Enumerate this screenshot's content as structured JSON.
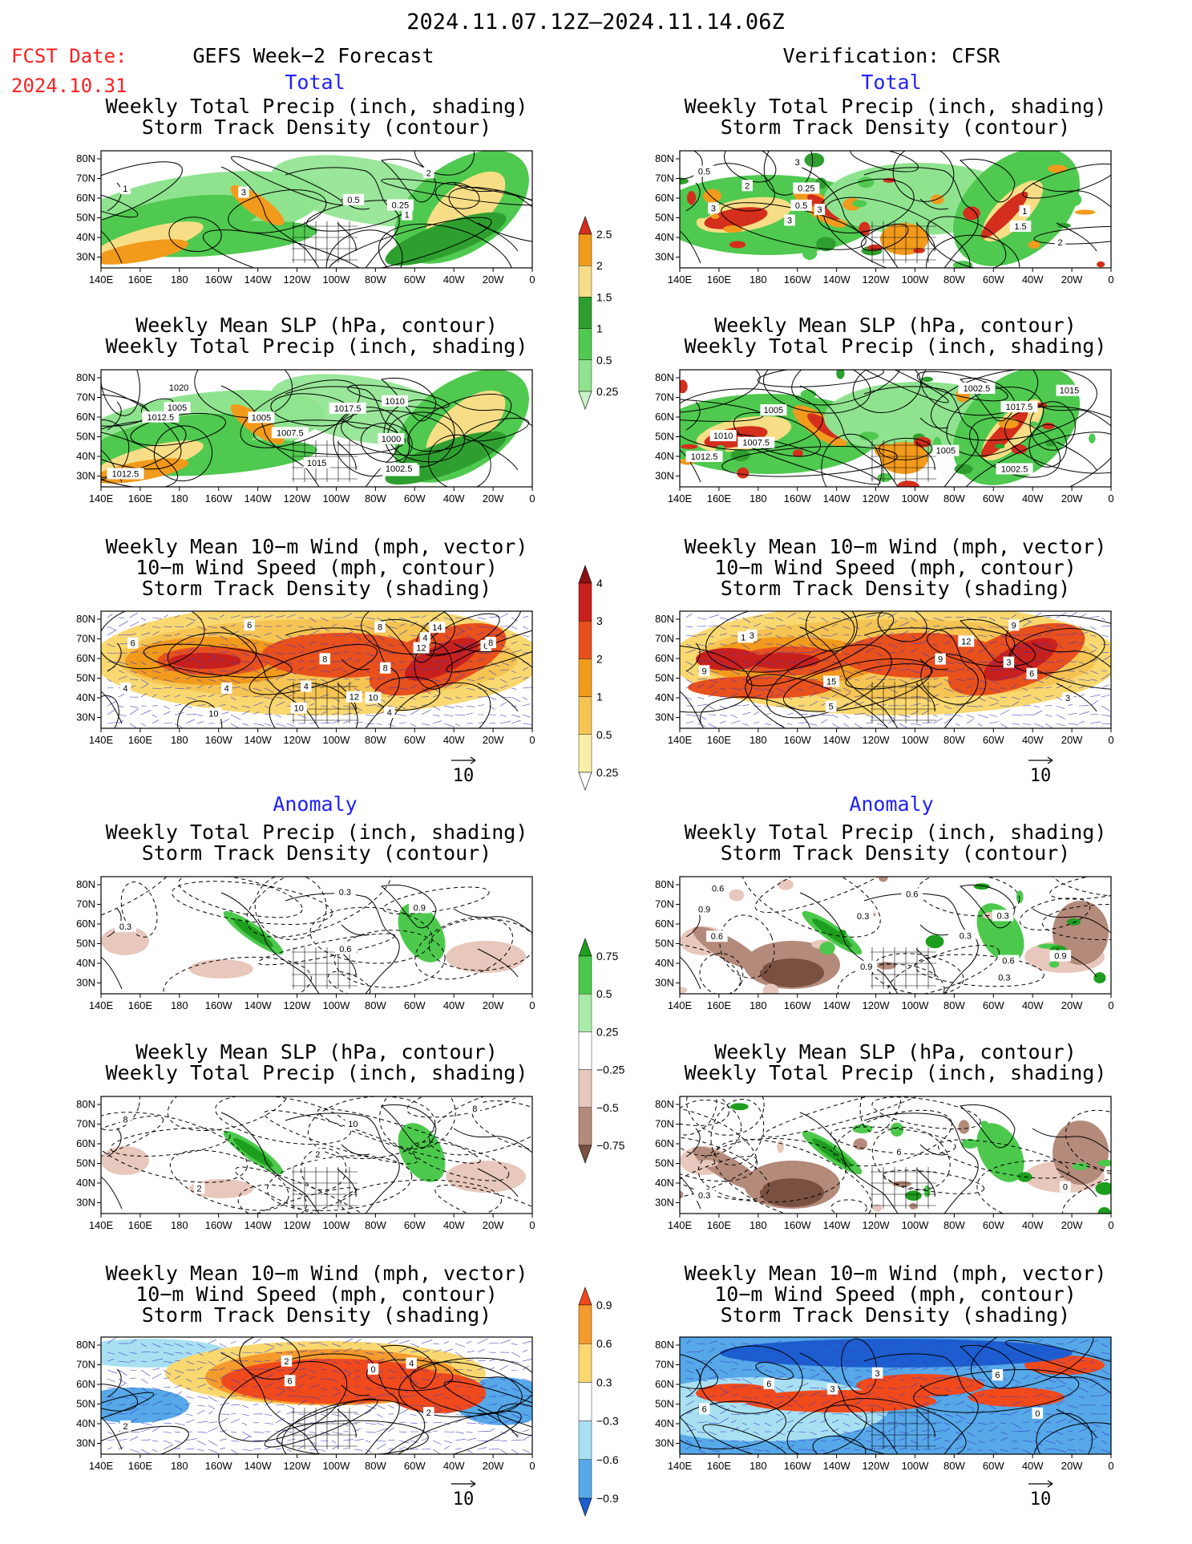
{
  "header": {
    "date_range": "2024.11.07.12Z–2024.11.14.06Z",
    "fcst_label": "FCST Date:",
    "fcst_date": "2024.10.31",
    "left_title": "GEFS Week−2 Forecast",
    "right_title": "Verification: CFSR",
    "total_label": "Total",
    "anomaly_label": "Anomaly"
  },
  "panels": {
    "precip_storm": [
      "Weekly Total Precip (inch, shading)",
      "Storm Track Density (contour)"
    ],
    "slp_precip": [
      "Weekly Mean SLP (hPa, contour)",
      "Weekly Total Precip (inch, shading)"
    ],
    "wind_storm": [
      "Weekly Mean 10−m Wind (mph, vector)",
      "10−m Wind Speed (mph, contour)",
      "Storm Track Density (shading)"
    ]
  },
  "axes": {
    "lon_ticks": [
      "140E",
      "160E",
      "180",
      "160W",
      "140W",
      "120W",
      "100W",
      "80W",
      "60W",
      "40W",
      "20W",
      "0"
    ],
    "lat_ticks": [
      "80N",
      "70N",
      "60N",
      "50N",
      "40N",
      "30N"
    ]
  },
  "vector_scale_label": "10",
  "colorbars": {
    "precip_total": {
      "labels": [
        "2.5",
        "2",
        "1.5",
        "1",
        "0.5",
        "0.25"
      ],
      "colors": [
        "#d32f1c",
        "#f29a1c",
        "#f7de86",
        "#2e9f2e",
        "#4fc94f",
        "#8fe38f",
        "#c8f2c8"
      ]
    },
    "storm_total": {
      "labels": [
        "4",
        "3",
        "2",
        "1",
        "0.5",
        "0.25"
      ],
      "colors": [
        "#8b1010",
        "#c8201c",
        "#e8501c",
        "#f29a1c",
        "#f5c453",
        "#fbeea8",
        "#ffffff"
      ]
    },
    "precip_anom": {
      "labels": [
        "0.75",
        "0.5",
        "0.25",
        "−0.25",
        "−0.5",
        "−0.75"
      ],
      "colors": [
        "#1e9e1e",
        "#4cc94c",
        "#a8eca8",
        "#ffffff",
        "#e8c8bc",
        "#b48a7a",
        "#7a5040"
      ]
    },
    "storm_anom": {
      "labels": [
        "0.9",
        "0.6",
        "0.3",
        "−0.3",
        "−0.6",
        "−0.9"
      ],
      "colors": [
        "#f04a1c",
        "#f59a2c",
        "#f9d870",
        "#ffffff",
        "#a8e0f2",
        "#56a8e8",
        "#1c5ed0"
      ]
    }
  },
  "contour_labels": {
    "fc_total_precip": [
      "1",
      "3",
      "2",
      "1",
      "0.5",
      "0.25"
    ],
    "ver_total_precip": [
      "0.5",
      "3",
      "0.5",
      "2",
      "3",
      "1",
      "3",
      "2",
      "3",
      "1.5",
      "0.25"
    ],
    "fc_total_slp": [
      "1012.5",
      "1005",
      "1002.5",
      "1005",
      "1007.5",
      "1010",
      "1002.5",
      "1012.5",
      "1015",
      "1000",
      "1017.5",
      "1020"
    ],
    "ver_total_slp": [
      "1012.5",
      "1010",
      "1005",
      "1002.5",
      "1007.5",
      "1017.5",
      "1002.5",
      "1005",
      "1015"
    ],
    "fc_total_wind": [
      "4",
      "6",
      "10",
      "8",
      "4",
      "4",
      "8",
      "12",
      "10",
      "8",
      "6",
      "4",
      "10",
      "8",
      "14",
      "12",
      "6",
      "4"
    ],
    "ver_total_wind": [
      "9",
      "6",
      "12",
      "5",
      "3",
      "9",
      "9",
      "15",
      "12",
      "3",
      "3"
    ],
    "fc_anom_precip": [
      "0.3",
      "0.9",
      "0.6",
      "0.3"
    ],
    "ver_anom_precip": [
      "0.9",
      "0.3",
      "0.6",
      "0.9",
      "0.3",
      "0.6",
      "0.9",
      "0.6",
      "0.3",
      "0.3",
      "0.6"
    ],
    "fc_anom_slp": [
      "8",
      "10",
      "2",
      "2",
      "8"
    ],
    "ver_anom_slp": [
      "0.3",
      "6",
      "0"
    ],
    "fc_anom_wind": [
      "2",
      "2",
      "6",
      "2",
      "4",
      "0"
    ],
    "ver_anom_wind": [
      "6",
      "3",
      "0",
      "6",
      "3",
      "6"
    ]
  }
}
